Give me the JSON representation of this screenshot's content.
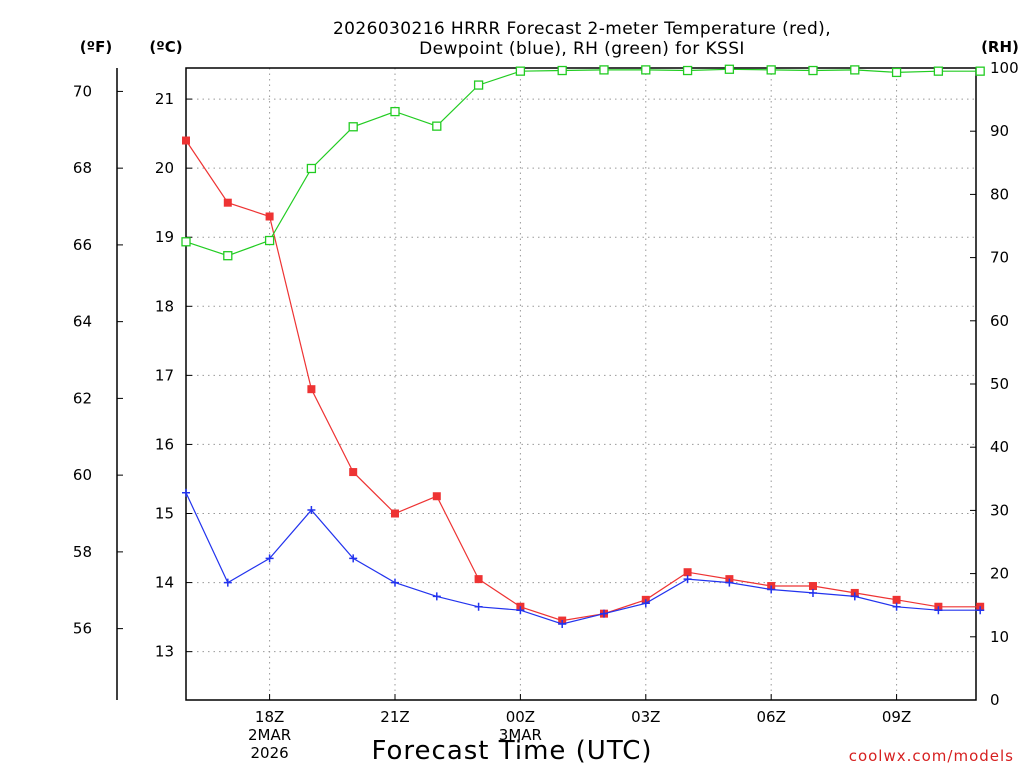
{
  "chart_data": {
    "type": "line",
    "title": [
      "2026030216 HRRR Forecast 2-meter Temperature (red),",
      "Dewpoint (blue), RH (green) for KSSI"
    ],
    "xlabel": "Forecast Time (UTC)",
    "credit": "coolwx.com/models",
    "colors": {
      "temperature": "#ee3333",
      "dewpoint": "#2233ee",
      "rh": "#22cc22"
    },
    "x_hours": [
      15,
      16,
      17,
      18,
      19,
      20,
      21,
      22,
      23,
      24,
      25,
      26,
      27,
      28,
      29,
      30,
      31,
      32,
      33,
      34
    ],
    "xlim": [
      15,
      33.9
    ],
    "x_ticks": [
      {
        "hour": 17,
        "lines": [
          "18Z",
          "2MAR",
          "2026"
        ]
      },
      {
        "hour": 20,
        "lines": [
          "21Z"
        ]
      },
      {
        "hour": 23,
        "lines": [
          "00Z",
          "3MAR"
        ]
      },
      {
        "hour": 26,
        "lines": [
          "03Z"
        ]
      },
      {
        "hour": 29,
        "lines": [
          "06Z"
        ]
      },
      {
        "hour": 32,
        "lines": [
          "09Z"
        ]
      }
    ],
    "celsius_axis": {
      "unit_label": "(ºC)",
      "ylim": [
        12.3,
        21.45
      ],
      "ticks": [
        13,
        14,
        15,
        16,
        17,
        18,
        19,
        20,
        21
      ]
    },
    "fahrenheit_axis": {
      "unit_label": "(ºF)",
      "ticks": [
        56,
        58,
        60,
        62,
        64,
        66,
        68,
        70
      ]
    },
    "rh_axis": {
      "unit_label": "(RH)",
      "ylim": [
        0,
        100
      ],
      "ticks": [
        0,
        10,
        20,
        30,
        40,
        50,
        60,
        70,
        80,
        90,
        100
      ]
    },
    "series": [
      {
        "name": "Temperature",
        "axis": "celsius",
        "marker": "filled-square",
        "values": [
          20.4,
          19.5,
          19.3,
          16.8,
          15.6,
          15.0,
          15.25,
          14.05,
          13.65,
          13.45,
          13.55,
          13.75,
          14.15,
          14.05,
          13.95,
          13.95,
          13.85,
          13.75,
          13.65,
          13.65
        ]
      },
      {
        "name": "Dewpoint",
        "axis": "celsius",
        "marker": "plus",
        "values": [
          15.3,
          14.0,
          14.35,
          15.05,
          14.35,
          14.0,
          13.8,
          13.65,
          13.6,
          13.4,
          13.55,
          13.7,
          14.05,
          14.0,
          13.9,
          13.85,
          13.8,
          13.65,
          13.6,
          13.6
        ]
      },
      {
        "name": "RH",
        "axis": "rh",
        "marker": "open-square",
        "values": [
          72.5,
          70.3,
          72.7,
          84.1,
          90.7,
          93.1,
          90.8,
          97.3,
          99.5,
          99.6,
          99.7,
          99.7,
          99.6,
          99.8,
          99.7,
          99.6,
          99.7,
          99.3,
          99.5,
          99.5
        ]
      }
    ]
  }
}
